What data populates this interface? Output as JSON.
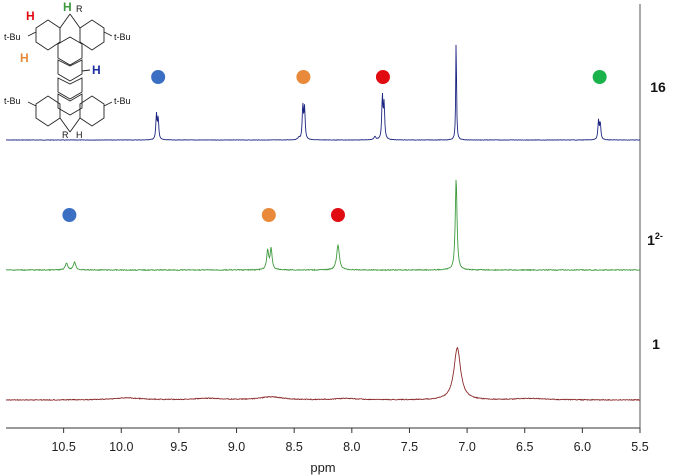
{
  "chart_data": {
    "type": "line",
    "xlabel": "ppm",
    "xlim": [
      11.0,
      5.5
    ],
    "x_reversed": true,
    "x_ticks": [
      "10.5",
      "10.0",
      "9.5",
      "9.0",
      "8.5",
      "8.0",
      "7.5",
      "7.0",
      "6.5",
      "6.0",
      "5.5"
    ],
    "x_tick_values": [
      10.5,
      10.0,
      9.5,
      9.0,
      8.5,
      8.0,
      7.5,
      7.0,
      6.5,
      6.0,
      5.5
    ],
    "series": [
      {
        "name": "16",
        "label": "16",
        "label_sup": "",
        "color": "#1c2580",
        "noise": 0.2,
        "peaks": [
          {
            "ppm": 9.695,
            "height": 25,
            "width": 0.006
          },
          {
            "ppm": 9.68,
            "height": 21,
            "width": 0.006
          },
          {
            "ppm": 8.425,
            "height": 34,
            "width": 0.006
          },
          {
            "ppm": 8.41,
            "height": 31,
            "width": 0.006
          },
          {
            "ppm": 7.735,
            "height": 43,
            "width": 0.006
          },
          {
            "ppm": 7.72,
            "height": 35,
            "width": 0.006
          },
          {
            "ppm": 7.095,
            "height": 104,
            "width": 0.004
          },
          {
            "ppm": 5.86,
            "height": 19,
            "width": 0.006
          },
          {
            "ppm": 5.845,
            "height": 17,
            "width": 0.006
          },
          {
            "ppm": 8.46,
            "height": 2,
            "width": 0.01
          },
          {
            "ppm": 7.8,
            "height": 3,
            "width": 0.01
          }
        ]
      },
      {
        "name": "1²⁻",
        "label": "1",
        "label_sup": "2-",
        "color": "#3f9a3f",
        "noise": 0.45,
        "peaks": [
          {
            "ppm": 10.475,
            "height": 7,
            "width": 0.012
          },
          {
            "ppm": 10.405,
            "height": 8,
            "width": 0.012
          },
          {
            "ppm": 8.73,
            "height": 19,
            "width": 0.01
          },
          {
            "ppm": 8.7,
            "height": 21,
            "width": 0.01
          },
          {
            "ppm": 8.12,
            "height": 25,
            "width": 0.014
          },
          {
            "ppm": 7.095,
            "height": 92,
            "width": 0.009
          }
        ]
      },
      {
        "name": "1",
        "label": "1",
        "label_sup": "",
        "color": "#8b2a2a",
        "noise": 0.4,
        "peaks": [
          {
            "ppm": 7.085,
            "height": 52,
            "width": 0.035
          },
          {
            "ppm": 8.7,
            "height": 3,
            "width": 0.12
          },
          {
            "ppm": 9.95,
            "height": 2,
            "width": 0.15
          },
          {
            "ppm": 9.25,
            "height": 1.5,
            "width": 0.15
          },
          {
            "ppm": 8.05,
            "height": 1.5,
            "width": 0.12
          },
          {
            "ppm": 6.45,
            "height": 1.5,
            "width": 0.15
          }
        ]
      }
    ],
    "markers": [
      {
        "series": "16",
        "ppm": 9.68,
        "color": "#3a6fc4"
      },
      {
        "series": "16",
        "ppm": 8.42,
        "color": "#e88a3a"
      },
      {
        "series": "16",
        "ppm": 7.73,
        "color": "#e00c12"
      },
      {
        "series": "16",
        "ppm": 5.85,
        "color": "#19b24b"
      },
      {
        "series": "1²⁻",
        "ppm": 10.45,
        "color": "#3a6fc4"
      },
      {
        "series": "1²⁻",
        "ppm": 8.72,
        "color": "#e88a3a"
      },
      {
        "series": "1²⁻",
        "ppm": 8.12,
        "color": "#e00c12"
      }
    ],
    "legend": "labels at right of each trace"
  },
  "structure": {
    "substituent": "t-Bu",
    "substituent_labels": [
      "t-Bu",
      "t-Bu",
      "t-Bu",
      "t-Bu"
    ],
    "r_labels": [
      "R",
      "R"
    ],
    "h_labels": [
      {
        "text": "H",
        "color": "#e00c12"
      },
      {
        "text": "H",
        "color": "#3f9a3f"
      },
      {
        "text": "H",
        "color": "#e88a3a"
      },
      {
        "text": "H",
        "color": "#1c2fa0"
      },
      {
        "text": "H",
        "color": "#111111"
      }
    ]
  }
}
